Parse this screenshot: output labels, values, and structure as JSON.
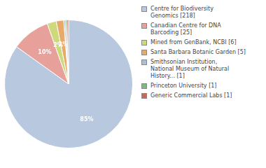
{
  "chart_data": {
    "type": "pie",
    "categories": [
      "Centre for Biodiversity\nGenomics [218]",
      "Canadian Centre for DNA\nBarcoding [25]",
      "Mined from GenBank, NCBI [6]",
      "Santa Barbara Botanic Garden [5]",
      "Smithsonian Institution,\nNational Museum of Natural\nHistory... [1]",
      "Princeton University [1]",
      "Generic Commercial Labs [1]"
    ],
    "values": [
      84.8,
      9.7,
      2.3,
      1.9,
      0.4,
      0.4,
      0.4
    ],
    "value_labels": [
      "85%",
      "10%",
      "2%",
      "2%",
      null,
      null,
      null
    ],
    "colors": [
      "#b8c9df",
      "#e8a09a",
      "#cdd97a",
      "#e8a96a",
      "#a8bfd4",
      "#7db87d",
      "#c86858"
    ],
    "legend": "right"
  }
}
